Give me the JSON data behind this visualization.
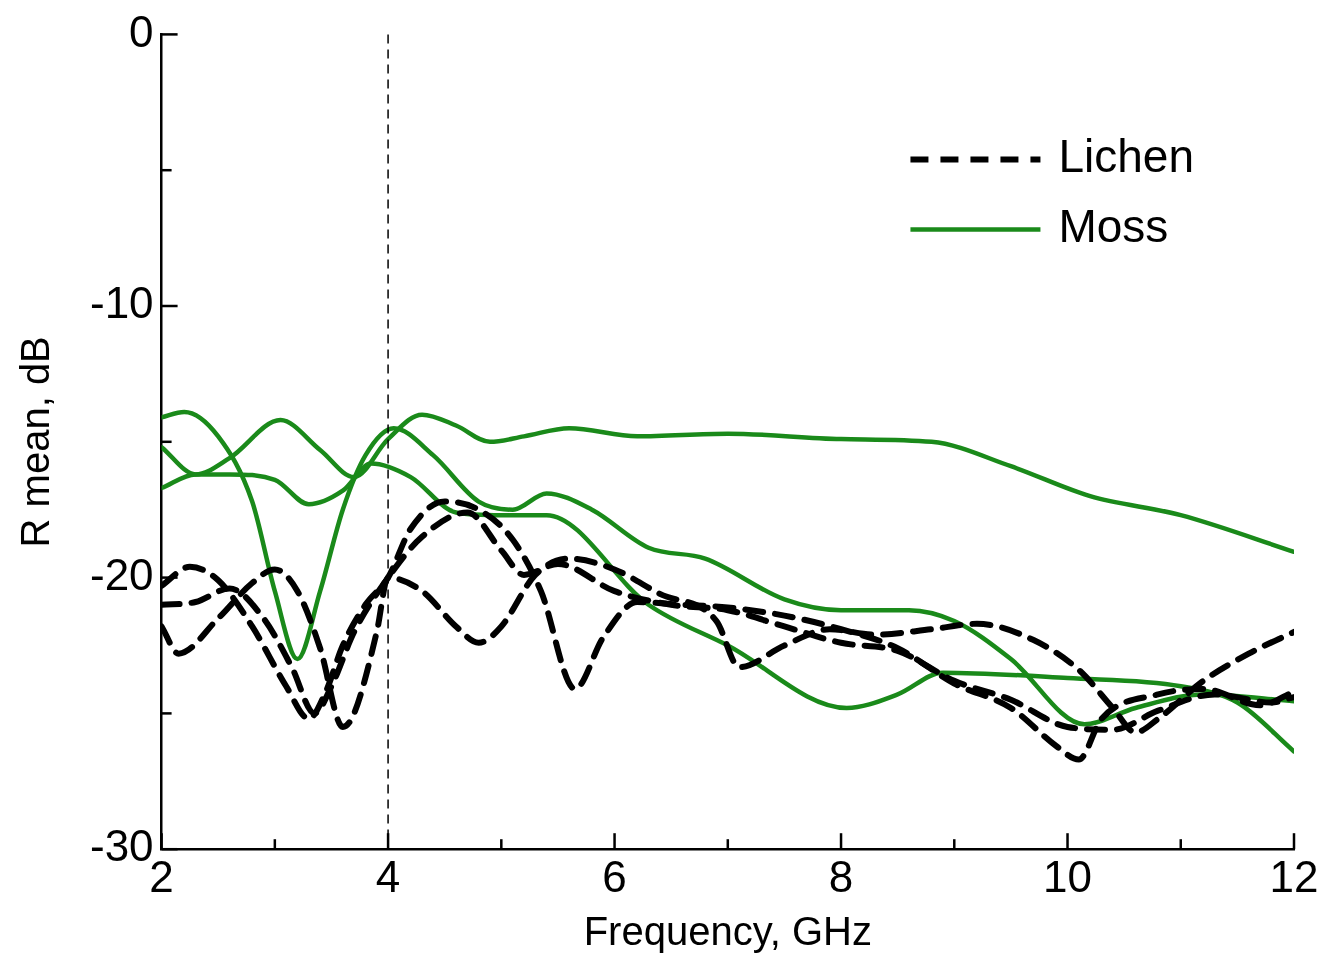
{
  "chart_data": {
    "type": "line",
    "xlabel": "Frequency, GHz",
    "ylabel": "R mean, dB",
    "xlim": [
      2,
      12
    ],
    "ylim": [
      -30,
      0
    ],
    "xticks": [
      2,
      {
        "value": 3,
        "label": null
      },
      4,
      {
        "value": 5,
        "label": null
      },
      6,
      {
        "value": 7,
        "label": null
      },
      8,
      {
        "value": 9,
        "label": null
      },
      10,
      {
        "value": 11,
        "label": null
      },
      12
    ],
    "yticks": [
      -30,
      {
        "value": -25,
        "label": null
      },
      -20,
      {
        "value": -15,
        "label": null
      },
      -10,
      {
        "value": -5,
        "label": null
      },
      0
    ],
    "grid": false,
    "legend": "top right",
    "marker": "none",
    "ref_lines": [
      {
        "axis": "x",
        "value": 4,
        "line_style": "dashed",
        "color": "#000000"
      }
    ],
    "series": [
      {
        "name": "Lichen",
        "color": "#000000",
        "line_style": "dashed",
        "x": [
          2,
          2.25,
          2.5,
          2.8,
          3.1,
          3.3,
          3.45,
          3.6,
          3.8,
          4.0,
          4.2,
          4.5,
          4.8,
          5.1,
          5.35,
          5.65,
          5.9,
          6.2,
          6.6,
          7.0,
          7.5,
          8.0,
          8.5,
          9.0,
          9.5,
          9.9,
          10.1,
          10.3,
          10.8,
          11.2,
          11.7,
          12
        ],
        "values": [
          -20.3,
          -19.6,
          -20.1,
          -21.8,
          -24.0,
          -25.2,
          -24.2,
          -22.5,
          -21.0,
          -20.0,
          -18.2,
          -17.2,
          -17.5,
          -18.6,
          -20.5,
          -24.1,
          -22.2,
          -20.9,
          -21.0,
          -21.1,
          -21.4,
          -21.9,
          -22.6,
          -23.9,
          -24.8,
          -26.2,
          -26.7,
          -25.2,
          -24.3,
          -24.1,
          -24.7,
          -24.2
        ]
      },
      {
        "color": "#000000",
        "line_style": "dashed",
        "x": [
          2,
          2.15,
          2.5,
          2.8,
          3.0,
          3.2,
          3.4,
          3.6,
          3.7,
          3.9,
          4.0,
          4.3,
          4.6,
          4.8,
          5.0,
          5.3,
          5.6,
          6.0,
          6.4,
          6.9,
          7.1,
          7.5,
          7.9,
          8.3,
          8.8,
          9.2,
          9.7,
          10.1,
          10.4,
          10.6,
          10.8,
          11.2,
          11.6,
          12
        ],
        "values": [
          -21.8,
          -22.8,
          -21.5,
          -20.2,
          -19.7,
          -20.5,
          -22.6,
          -25.5,
          -25.0,
          -22.0,
          -20.0,
          -20.5,
          -21.8,
          -22.4,
          -21.8,
          -19.9,
          -19.3,
          -19.7,
          -20.6,
          -21.6,
          -23.3,
          -22.5,
          -21.9,
          -22.1,
          -21.9,
          -21.7,
          -22.3,
          -23.4,
          -24.8,
          -25.7,
          -25.2,
          -23.8,
          -22.8,
          -22.0
        ]
      },
      {
        "color": "#000000",
        "line_style": "dashed",
        "x": [
          2,
          2.3,
          2.6,
          2.9,
          3.15,
          3.35,
          3.5,
          3.7,
          4.0,
          4.3,
          4.7,
          5.0,
          5.2,
          5.5,
          6.0,
          6.5,
          7.0,
          7.5,
          8.0,
          8.5,
          9.0,
          9.5,
          10.0,
          10.4,
          10.8,
          11.3,
          11.8,
          12
        ],
        "values": [
          -21.0,
          -20.9,
          -20.4,
          -21.5,
          -23.3,
          -25.0,
          -24.0,
          -22.0,
          -20.0,
          -18.5,
          -17.6,
          -19.0,
          -19.9,
          -19.5,
          -20.5,
          -21.0,
          -21.2,
          -21.8,
          -22.4,
          -22.7,
          -23.8,
          -24.5,
          -25.5,
          -25.6,
          -24.9,
          -24.3,
          -24.6,
          -24.4
        ]
      },
      {
        "name": "Moss",
        "color": "#1a8a1a",
        "line_style": "solid",
        "x": [
          2,
          2.3,
          2.6,
          3.05,
          3.4,
          3.7,
          4.0,
          4.3,
          4.6,
          4.9,
          5.2,
          5.6,
          6.2,
          7.0,
          8.0,
          8.8,
          9.5,
          10.2,
          11.0,
          12
        ],
        "values": [
          -15.2,
          -16.2,
          -15.6,
          -14.2,
          -15.3,
          -16.3,
          -14.9,
          -14.0,
          -14.4,
          -15.0,
          -14.8,
          -14.5,
          -14.8,
          -14.7,
          -14.9,
          -15.0,
          -15.9,
          -17.0,
          -17.7,
          -19.05
        ]
      },
      {
        "color": "#1a8a1a",
        "line_style": "solid",
        "x": [
          2,
          2.2,
          2.5,
          2.8,
          3.0,
          3.2,
          3.4,
          3.6,
          3.8,
          4.05,
          4.4,
          4.8,
          5.1,
          5.4,
          5.8,
          6.3,
          6.8,
          7.5,
          8.0,
          8.6,
          9.0,
          9.5,
          10.15,
          10.6,
          11.2,
          12
        ],
        "values": [
          -14.1,
          -13.9,
          -14.8,
          -17.2,
          -20.5,
          -23.0,
          -20.5,
          -17.5,
          -15.5,
          -14.5,
          -15.5,
          -17.2,
          -17.5,
          -16.9,
          -17.5,
          -18.9,
          -19.3,
          -20.8,
          -21.2,
          -21.2,
          -21.6,
          -23.0,
          -25.4,
          -24.8,
          -24.3,
          -24.55
        ]
      },
      {
        "color": "#1a8a1a",
        "line_style": "solid",
        "x": [
          2,
          2.3,
          2.6,
          3.0,
          3.3,
          3.6,
          3.85,
          4.2,
          4.6,
          5.0,
          5.4,
          6.3,
          7.0,
          8.05,
          8.5,
          8.9,
          10.0,
          11.0,
          11.5,
          12
        ],
        "values": [
          -16.7,
          -16.2,
          -16.2,
          -16.4,
          -17.3,
          -16.8,
          -15.8,
          -16.3,
          -17.6,
          -17.7,
          -17.7,
          -21.0,
          -22.5,
          -24.8,
          -24.3,
          -23.5,
          -23.7,
          -24.0,
          -24.6,
          -26.4
        ]
      }
    ]
  }
}
